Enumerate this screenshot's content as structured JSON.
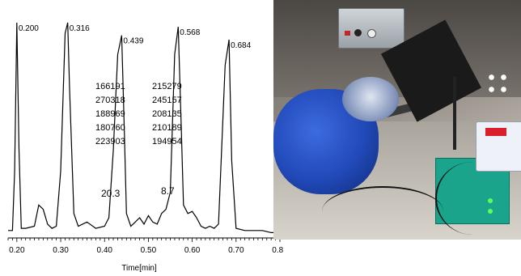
{
  "chart_data": {
    "type": "line",
    "xlabel": "Time[min]",
    "ylabel": "",
    "xlim": [
      0.18,
      0.8
    ],
    "x_ticks": [
      "0.20",
      "0.30",
      "0.40",
      "0.50",
      "0.60",
      "0.70",
      "0.80"
    ],
    "x_tick_values": [
      0.2,
      0.3,
      0.4,
      0.5,
      0.6,
      0.7,
      0.8
    ],
    "peaks": [
      {
        "time": 0.2,
        "label": "0.200"
      },
      {
        "time": 0.316,
        "label": "0.316"
      },
      {
        "time": 0.439,
        "label": "0.439"
      },
      {
        "time": 0.568,
        "label": "0.568"
      },
      {
        "time": 0.684,
        "label": "0.684"
      }
    ],
    "trace": {
      "x": [
        0.18,
        0.19,
        0.195,
        0.2,
        0.205,
        0.21,
        0.22,
        0.24,
        0.25,
        0.26,
        0.27,
        0.28,
        0.29,
        0.3,
        0.31,
        0.316,
        0.32,
        0.33,
        0.34,
        0.36,
        0.38,
        0.4,
        0.41,
        0.42,
        0.43,
        0.439,
        0.445,
        0.45,
        0.46,
        0.47,
        0.48,
        0.49,
        0.5,
        0.51,
        0.52,
        0.53,
        0.54,
        0.55,
        0.56,
        0.568,
        0.575,
        0.58,
        0.59,
        0.6,
        0.61,
        0.62,
        0.63,
        0.64,
        0.65,
        0.66,
        0.675,
        0.684,
        0.69,
        0.7,
        0.72,
        0.74,
        0.76,
        0.78,
        0.8
      ],
      "y": [
        2,
        2,
        30,
        100,
        40,
        3,
        3,
        4,
        14,
        12,
        5,
        3,
        4,
        30,
        95,
        100,
        70,
        10,
        4,
        6,
        3,
        4,
        8,
        40,
        85,
        94,
        50,
        10,
        4,
        6,
        8,
        5,
        9,
        6,
        5,
        10,
        12,
        20,
        85,
        98,
        50,
        14,
        10,
        11,
        8,
        4,
        3,
        4,
        3,
        5,
        80,
        92,
        35,
        3,
        2,
        2,
        2,
        1,
        1
      ]
    },
    "table": {
      "column_left": [
        "166191",
        "270318",
        "188969",
        "180760",
        "223903"
      ],
      "column_right": [
        "215279",
        "245157",
        "208135",
        "210189",
        "194954"
      ],
      "summary_left": "20.3",
      "summary_right": "8.7"
    }
  },
  "photo": {
    "accent_blue": "#2149b8",
    "accent_green": "#1aa48c",
    "accent_red": "#d81f2b"
  }
}
